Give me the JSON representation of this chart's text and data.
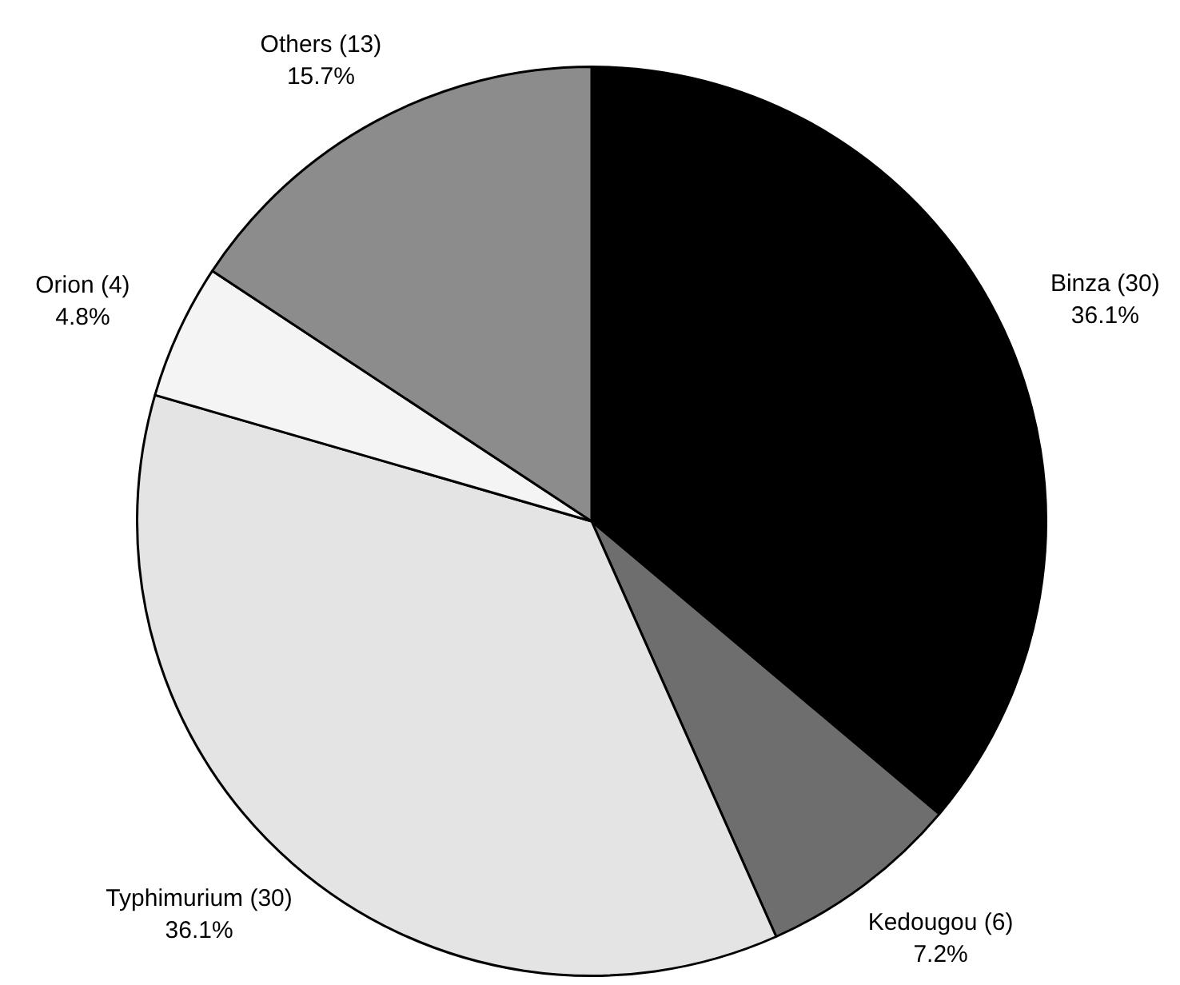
{
  "chart_data": {
    "type": "pie",
    "categories": [
      "Binza (30)",
      "Kedougou (6)",
      "Typhimurium (30)",
      "Orion (4)",
      "Others (13)"
    ],
    "values": [
      36.1,
      7.2,
      36.1,
      4.8,
      15.7
    ],
    "value_labels": [
      "36.1%",
      "7.2%",
      "36.1%",
      "4.8%",
      "15.7%"
    ],
    "colors": [
      "#000000",
      "#6e6e6e",
      "#e4e4e4",
      "#f4f4f4",
      "#8c8c8c"
    ],
    "legend": false
  }
}
